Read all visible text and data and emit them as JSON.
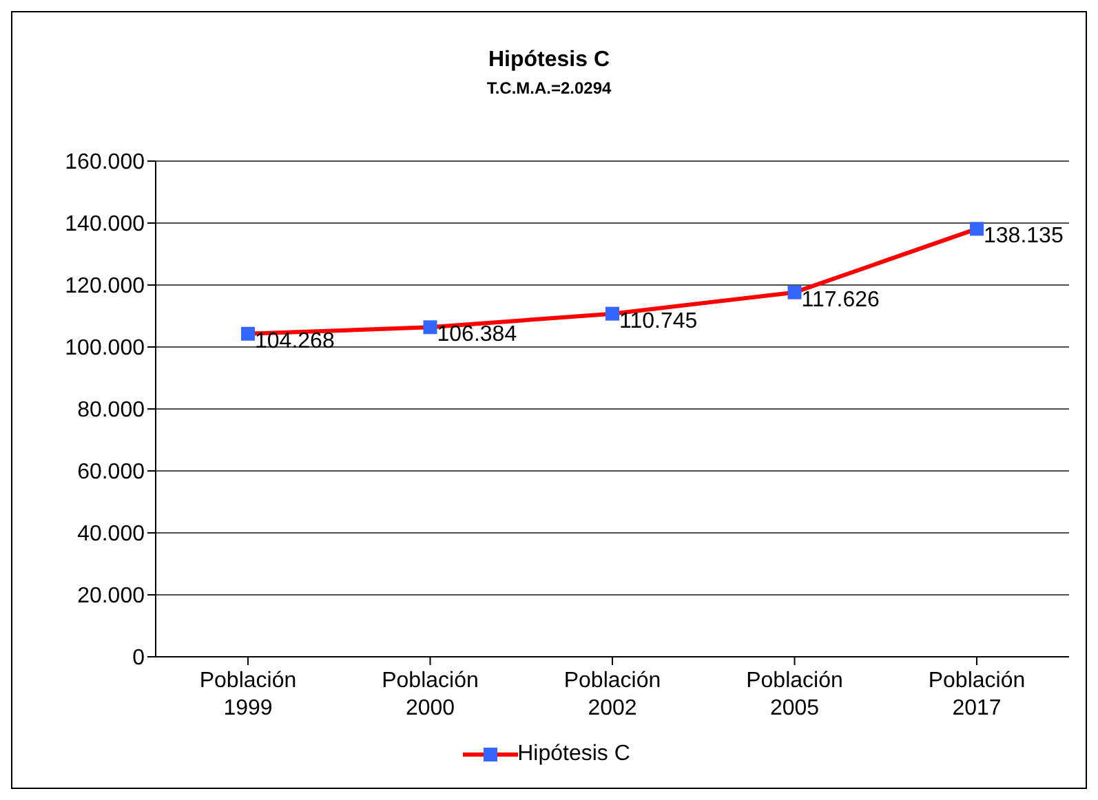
{
  "chart_data": {
    "type": "line",
    "title": "Hipótesis C",
    "subtitle": "T.C.M.A.=2.0294",
    "categories": [
      "Población 1999",
      "Población 2000",
      "Población 2002",
      "Población 2005",
      "Población 2017"
    ],
    "series": [
      {
        "name": "Hipótesis C",
        "color": "#ff0000",
        "colors": [
          "#3366ff",
          "#3366ff",
          "#3366ff",
          "#3366ff",
          "#3366ff"
        ],
        "values": [
          104268,
          106384,
          110745,
          117626,
          138135
        ],
        "value_labels": [
          "104.268",
          "106.384",
          "110.745",
          "117.626",
          "138.135"
        ]
      }
    ],
    "ylim": [
      0,
      160000
    ],
    "yticks": [
      0,
      {
        "value": 20000,
        "label": "20.000"
      },
      {
        "value": 40000,
        "label": "40.000"
      },
      {
        "value": 60000,
        "label": "60.000"
      },
      {
        "value": 80000,
        "label": "80.000"
      },
      {
        "value": 100000,
        "label": "100.000"
      },
      {
        "value": 120000,
        "label": "120.000"
      },
      {
        "value": 140000,
        "label": "140.000"
      },
      {
        "value": 160000,
        "label": "160.000"
      }
    ],
    "grid": "y",
    "legend": "bottom",
    "marker": "square",
    "line_style": "solid"
  }
}
